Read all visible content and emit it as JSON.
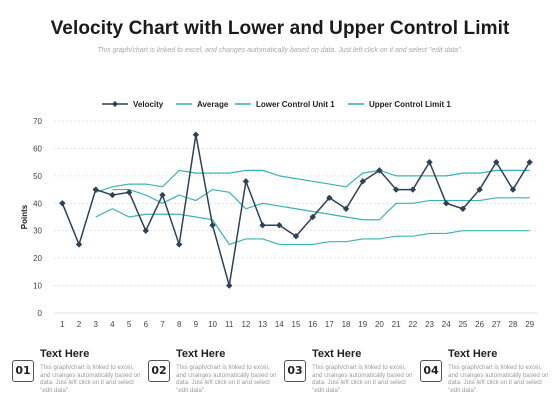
{
  "header": {
    "title": "Velocity Chart with Lower and Upper Control Limit",
    "subtitle": "This graph/chart is linked to excel, and changes automatically based on data. Just left click on it and select \"edit data\"."
  },
  "colors": {
    "velocity": "#2e4156",
    "average": "#3ab3b3",
    "lower": "#3ab3b3",
    "upper": "#3ab3b3",
    "grid": "#d9d9d9"
  },
  "chart_data": {
    "type": "line",
    "ylabel": "Points",
    "xlabel": "",
    "ylim": [
      0,
      70
    ],
    "yticks": [
      0,
      10,
      20,
      30,
      40,
      50,
      60,
      70
    ],
    "grid": true,
    "legend_position": "top",
    "x": [
      1,
      2,
      3,
      4,
      5,
      6,
      7,
      8,
      9,
      10,
      11,
      12,
      13,
      14,
      15,
      16,
      17,
      18,
      19,
      20,
      21,
      22,
      23,
      24,
      25,
      26,
      27,
      28,
      29
    ],
    "series": [
      {
        "name": "Velocity",
        "marker": "diamond",
        "values": [
          40,
          25,
          45,
          43,
          44,
          30,
          43,
          25,
          65,
          32,
          10,
          48,
          32,
          32,
          28,
          35,
          42,
          38,
          48,
          52,
          45,
          45,
          55,
          40,
          38,
          45,
          55,
          45,
          55
        ]
      },
      {
        "name": "Average",
        "values": [
          null,
          null,
          null,
          45,
          45,
          43,
          40,
          43,
          41,
          45,
          44,
          38,
          40,
          39,
          38,
          37,
          36,
          35,
          34,
          34,
          40,
          40,
          41,
          41,
          41,
          41,
          42,
          42,
          42
        ]
      },
      {
        "name": "Lower Control Unit 1",
        "values": [
          null,
          null,
          35,
          38,
          35,
          36,
          36,
          36,
          35,
          34,
          25,
          27,
          27,
          25,
          25,
          25,
          26,
          26,
          27,
          27,
          28,
          28,
          29,
          29,
          30,
          30,
          30,
          30,
          30
        ]
      },
      {
        "name": "Upper Control Limit 1",
        "values": [
          null,
          null,
          44,
          46,
          47,
          47,
          46,
          52,
          51,
          51,
          51,
          52,
          52,
          50,
          49,
          48,
          47,
          46,
          51,
          52,
          50,
          50,
          50,
          50,
          51,
          51,
          52,
          52,
          52
        ]
      }
    ]
  },
  "footer": {
    "items": [
      {
        "num": "01",
        "heading": "Text Here",
        "text": "This graph/chart is linked to excel, and changes automatically based on data. Just left click on it and select \"edit data\"."
      },
      {
        "num": "02",
        "heading": "Text Here",
        "text": "This graph/chart is linked to excel, and changes automatically based on data. Just left click on it and select \"edit data\"."
      },
      {
        "num": "03",
        "heading": "Text Here",
        "text": "This graph/chart is linked to excel, and changes automatically based on data. Just left click on it and select \"edit data\"."
      },
      {
        "num": "04",
        "heading": "Text Here",
        "text": "This graph/chart is linked to excel, and changes automatically based on data. Just left click on it and select \"edit data\"."
      }
    ]
  }
}
